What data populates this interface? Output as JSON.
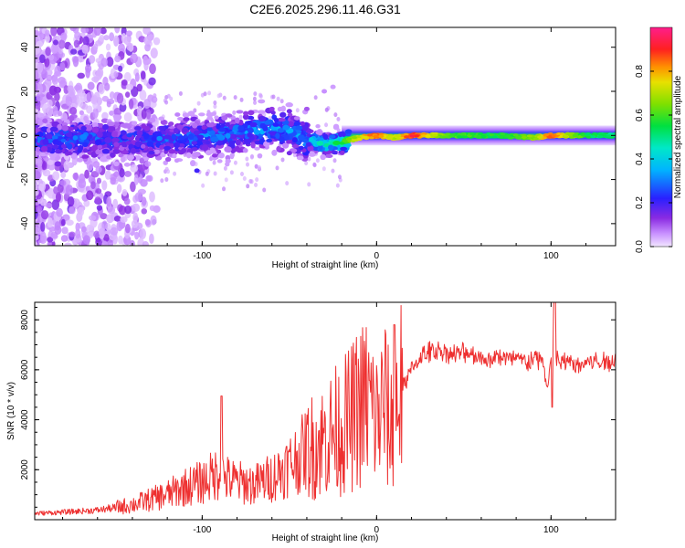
{
  "title": "C2E6.2025.296.11.46.G31",
  "colors": {
    "snr_line": "#ee3030",
    "frame": "#000000"
  },
  "chart_data": [
    {
      "type": "heatmap",
      "title": "C2E6.2025.296.11.46.G31",
      "xlabel": "Height of straight line (km)",
      "ylabel": "Frequency (Hz)",
      "xlim": [
        -196,
        137
      ],
      "ylim": [
        -50,
        49
      ],
      "xticks": [
        -100,
        0,
        100
      ],
      "yticks": [
        -40,
        -20,
        0,
        20,
        40
      ],
      "xtick_labels": [
        "-100",
        "0",
        "100"
      ],
      "ytick_labels": [
        "-40",
        "-20",
        "0",
        "20",
        "40"
      ],
      "colorbar": {
        "label": "Normalized spectral amplitude",
        "range": [
          0.0,
          1.0
        ],
        "ticks": [
          0.0,
          0.2,
          0.4,
          0.6,
          0.8
        ],
        "tick_labels": [
          "0.0",
          "0.2",
          "0.4",
          "0.6",
          "0.8"
        ]
      },
      "ridge": [
        {
          "x": -190,
          "freq": -2,
          "amp": 0.25
        },
        {
          "x": -170,
          "freq": -1,
          "amp": 0.28
        },
        {
          "x": -150,
          "freq": -2,
          "amp": 0.22
        },
        {
          "x": -130,
          "freq": -2,
          "amp": 0.24
        },
        {
          "x": -110,
          "freq": -1,
          "amp": 0.27
        },
        {
          "x": -90,
          "freq": 0,
          "amp": 0.28
        },
        {
          "x": -75,
          "freq": 2,
          "amp": 0.3
        },
        {
          "x": -60,
          "freq": 3,
          "amp": 0.32
        },
        {
          "x": -50,
          "freq": 2,
          "amp": 0.3
        },
        {
          "x": -40,
          "freq": -2,
          "amp": 0.35
        },
        {
          "x": -30,
          "freq": -4,
          "amp": 0.45
        },
        {
          "x": -20,
          "freq": -3,
          "amp": 0.55
        },
        {
          "x": -10,
          "freq": -1,
          "amp": 0.75
        },
        {
          "x": 0,
          "freq": 0,
          "amp": 0.85
        },
        {
          "x": 10,
          "freq": -1,
          "amp": 0.7
        },
        {
          "x": 20,
          "freq": 0,
          "amp": 0.9
        },
        {
          "x": 40,
          "freq": 0,
          "amp": 0.6
        },
        {
          "x": 70,
          "freq": 0,
          "amp": 0.55
        },
        {
          "x": 90,
          "freq": -1,
          "amp": 0.65
        },
        {
          "x": 100,
          "freq": 0,
          "amp": 0.85
        },
        {
          "x": 120,
          "freq": 0,
          "amp": 0.55
        },
        {
          "x": 137,
          "freq": 0,
          "amp": 0.5
        }
      ]
    },
    {
      "type": "line",
      "xlabel": "Height of straight line (km)",
      "ylabel": "SNR (10 * v/v)",
      "xlim": [
        -196,
        137
      ],
      "ylim": [
        0,
        8700
      ],
      "xticks": [
        -100,
        0,
        100
      ],
      "yticks": [
        2000,
        4000,
        6000,
        8000
      ],
      "xtick_labels": [
        "-100",
        "0",
        "100"
      ],
      "ytick_labels": [
        "2000",
        "4000",
        "6000",
        "8000"
      ],
      "series": [
        {
          "name": "SNR",
          "x": [
            -196,
            -180,
            -160,
            -150,
            -140,
            -130,
            -120,
            -110,
            -100,
            -95,
            -90,
            -85,
            -80,
            -70,
            -60,
            -50,
            -45,
            -40,
            -35,
            -30,
            -25,
            -20,
            -15,
            -10,
            -5,
            0,
            5,
            8,
            10,
            12,
            15,
            20,
            25,
            30,
            35,
            40,
            45,
            50,
            55,
            60,
            65,
            70,
            75,
            80,
            85,
            90,
            95,
            98,
            100,
            102,
            105,
            110,
            115,
            120,
            125,
            130,
            137
          ],
          "y": [
            250,
            300,
            380,
            480,
            600,
            800,
            1000,
            1300,
            1500,
            1700,
            1900,
            1600,
            1500,
            1400,
            1700,
            2200,
            2500,
            2800,
            3000,
            3200,
            3500,
            3700,
            4000,
            4500,
            4800,
            4000,
            4700,
            3500,
            4500,
            5000,
            5300,
            6000,
            6500,
            6700,
            6800,
            6700,
            6600,
            6700,
            6600,
            6500,
            6400,
            6600,
            6400,
            6500,
            6300,
            6400,
            6450,
            5200,
            6500,
            6500,
            6300,
            6300,
            6200,
            6300,
            6350,
            6300,
            6400
          ]
        }
      ]
    }
  ]
}
